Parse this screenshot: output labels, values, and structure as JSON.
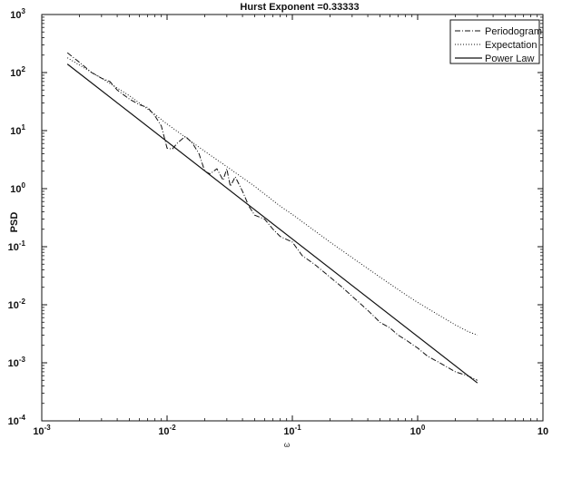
{
  "chart_data": {
    "type": "line",
    "title": "Hurst Exponent =0.33333",
    "xlabel": "ω",
    "ylabel": "PSD",
    "xscale": "log",
    "yscale": "log",
    "xlim": [
      0.001,
      10
    ],
    "ylim": [
      0.0001,
      1000
    ],
    "x_ticks": [
      {
        "base": "10",
        "exp": "-3"
      },
      {
        "base": "10",
        "exp": "-2"
      },
      {
        "base": "10",
        "exp": "-1"
      },
      {
        "base": "10",
        "exp": "0"
      },
      {
        "base": "10",
        "exp": ""
      }
    ],
    "y_ticks": [
      {
        "base": "10",
        "exp": "-4"
      },
      {
        "base": "10",
        "exp": "-3"
      },
      {
        "base": "10",
        "exp": "-2"
      },
      {
        "base": "10",
        "exp": "-1"
      },
      {
        "base": "10",
        "exp": "0"
      },
      {
        "base": "10",
        "exp": "1"
      },
      {
        "base": "10",
        "exp": "2"
      },
      {
        "base": "10",
        "exp": "3"
      }
    ],
    "legend": "top-right",
    "grid": false,
    "series": [
      {
        "name": "Periodogram",
        "style": "dash-dot",
        "x": [
          0.0016,
          0.002,
          0.0025,
          0.003,
          0.0035,
          0.004,
          0.005,
          0.006,
          0.007,
          0.008,
          0.009,
          0.01,
          0.011,
          0.012,
          0.014,
          0.016,
          0.018,
          0.02,
          0.022,
          0.025,
          0.028,
          0.03,
          0.032,
          0.035,
          0.04,
          0.045,
          0.05,
          0.06,
          0.07,
          0.08,
          0.1,
          0.12,
          0.15,
          0.2,
          0.25,
          0.3,
          0.4,
          0.5,
          0.6,
          0.7,
          0.8,
          1.0,
          1.2,
          1.5,
          2.0,
          2.5,
          3.0
        ],
        "y": [
          220,
          150,
          100,
          80,
          70,
          50,
          35,
          28,
          25,
          18,
          12,
          5,
          4.8,
          6,
          8,
          6,
          4,
          2,
          1.8,
          2.2,
          1.4,
          2.2,
          1.1,
          1.6,
          0.9,
          0.5,
          0.35,
          0.3,
          0.2,
          0.15,
          0.12,
          0.07,
          0.05,
          0.03,
          0.02,
          0.014,
          0.008,
          0.005,
          0.004,
          0.003,
          0.0025,
          0.0018,
          0.0013,
          0.001,
          0.0007,
          0.0006,
          0.0005
        ]
      },
      {
        "name": "Expectation",
        "style": "dotted",
        "x": [
          0.0016,
          0.002,
          0.003,
          0.005,
          0.008,
          0.01,
          0.02,
          0.03,
          0.05,
          0.08,
          0.1,
          0.2,
          0.3,
          0.5,
          0.8,
          1.0,
          1.5,
          2.0,
          2.5,
          3.0
        ],
        "y": [
          180,
          135,
          80,
          40,
          19,
          13,
          4.4,
          2.4,
          1.1,
          0.5,
          0.36,
          0.12,
          0.065,
          0.03,
          0.015,
          0.011,
          0.0065,
          0.0045,
          0.0035,
          0.003
        ]
      },
      {
        "name": "Power Law",
        "style": "solid",
        "x": [
          0.0016,
          3.0
        ],
        "y": [
          140,
          0.00045
        ]
      }
    ]
  }
}
